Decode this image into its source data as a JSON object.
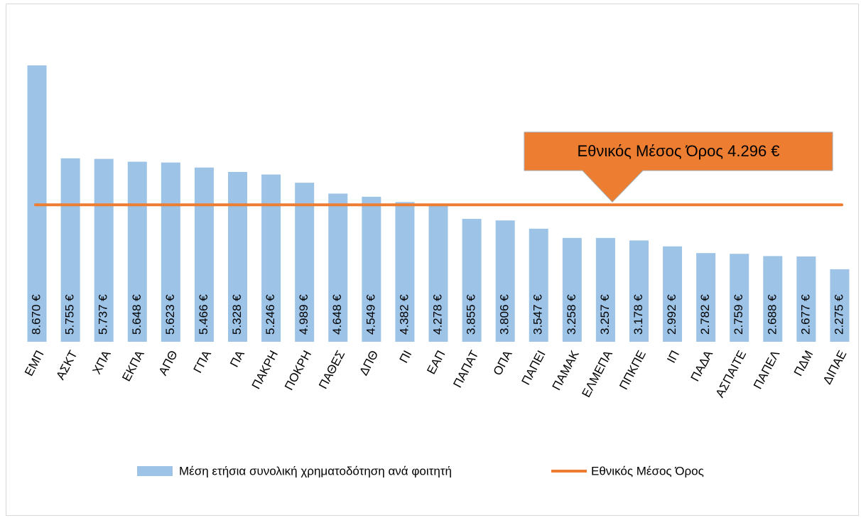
{
  "chart_data": {
    "type": "bar",
    "categories": [
      "ΕΜΠ",
      "ΑΣΚΤ",
      "ΧΠΑ",
      "ΕΚΠΑ",
      "ΑΠΘ",
      "ΓΠΑ",
      "ΠΑ",
      "ΠΑΚΡΗ",
      "ΠΟΚΡΗ",
      "ΠΑΘΕΣ",
      "ΔΠΘ",
      "ΠΙ",
      "ΕΑΠ",
      "ΠΑΠΑΤ",
      "ΟΠΑ",
      "ΠΑΠΕΙ",
      "ΠΑΜΑΚ",
      "ΕΛΜΕΠΑ",
      "ΠΠΚΠΕ",
      "ΙΠ",
      "ΠΑΔΑ",
      "ΑΣΠΑΙΤΕ",
      "ΠΑΠΕΛ",
      "ΠΔΜ",
      "ΔΙΠΑΕ"
    ],
    "series": [
      {
        "name": "Μέση ετήσια συνολική χρηματοδότηση ανά φοιτητή",
        "color": "#9dc3e6",
        "values": [
          8670,
          5755,
          5737,
          5648,
          5623,
          5466,
          5328,
          5246,
          4989,
          4648,
          4549,
          4382,
          4278,
          3855,
          3806,
          3547,
          3258,
          3257,
          3178,
          2992,
          2782,
          2759,
          2688,
          2677,
          2275
        ],
        "value_labels": [
          "8.670 €",
          "5.755 €",
          "5.737 €",
          "5.648 €",
          "5.623 €",
          "5.466 €",
          "5.328 €",
          "5.246 €",
          "4.989 €",
          "4.648 €",
          "4.549 €",
          "4.382 €",
          "4.278 €",
          "3.855 €",
          "3.806 €",
          "3.547 €",
          "3.258 €",
          "3.257 €",
          "3.178 €",
          "2.992 €",
          "2.782 €",
          "2.759 €",
          "2.688 €",
          "2.677 €",
          "2.275 €"
        ]
      },
      {
        "name": "Εθνικός Μέσος Όρος",
        "color": "#ed7d31",
        "type": "line",
        "value": 4296,
        "value_label": "4.296 €"
      }
    ]
  }
}
